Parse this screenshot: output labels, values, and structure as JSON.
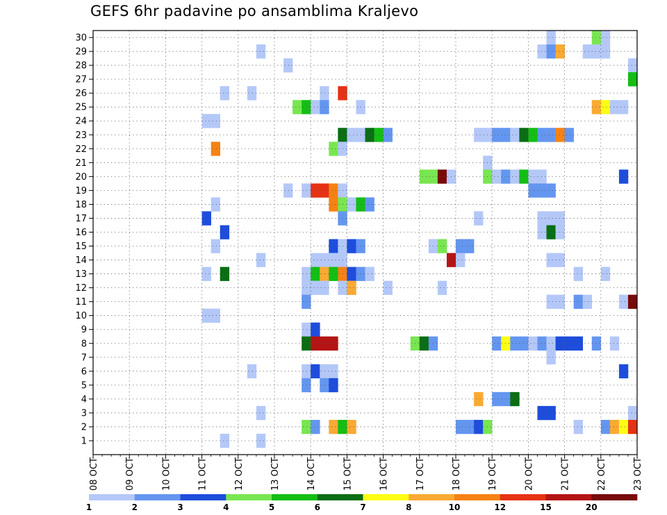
{
  "title": "GEFS 6hr padavine po ansamblima Kraljevo",
  "chart_data": {
    "type": "heatmap",
    "title": "GEFS 6hr padavine po ansamblima Kraljevo",
    "x_ticks": [
      "08 OCT",
      "09 OCT",
      "10 OCT",
      "11 OCT",
      "12 OCT",
      "13 OCT",
      "14 OCT",
      "15 OCT",
      "16 OCT",
      "17 OCT",
      "18 OCT",
      "19 OCT",
      "20 OCT",
      "21 OCT",
      "22 OCT",
      "23 OCT"
    ],
    "y_ticks": [
      "1",
      "2",
      "3",
      "4",
      "5",
      "6",
      "7",
      "8",
      "9",
      "10",
      "11",
      "12",
      "13",
      "14",
      "15",
      "16",
      "17",
      "18",
      "19",
      "20",
      "21",
      "22",
      "23",
      "24",
      "25",
      "26",
      "27",
      "28",
      "29",
      "30"
    ],
    "x_range": [
      "08 OCT 00Z",
      "23 OCT 00Z"
    ],
    "time_step_hours": 6,
    "grid": "dotted",
    "colorbar": {
      "levels": [
        "1",
        "2",
        "3",
        "4",
        "5",
        "6",
        "7",
        "8",
        "10",
        "12",
        "15",
        "20"
      ],
      "colors": [
        "#b4c8f8",
        "#6496f0",
        "#1e4ddc",
        "#78e650",
        "#14be14",
        "#0a6e14",
        "#ffff14",
        "#faaa32",
        "#f58214",
        "#e63214",
        "#b41414",
        "#780a0a"
      ]
    },
    "cells": [
      {
        "member": 30,
        "step": 51,
        "class": 1
      },
      {
        "member": 30,
        "step": 56,
        "class": 4
      },
      {
        "member": 30,
        "step": 57,
        "class": 1
      },
      {
        "member": 29,
        "step": 19,
        "class": 1
      },
      {
        "member": 29,
        "step": 50,
        "class": 1
      },
      {
        "member": 29,
        "step": 51,
        "class": 2
      },
      {
        "member": 29,
        "step": 52,
        "class": 8
      },
      {
        "member": 29,
        "step": 55,
        "class": 1
      },
      {
        "member": 29,
        "step": 56,
        "class": 1
      },
      {
        "member": 29,
        "step": 57,
        "class": 1
      },
      {
        "member": 28,
        "step": 22,
        "class": 1
      },
      {
        "member": 28,
        "step": 60,
        "class": 1
      },
      {
        "member": 27,
        "step": 60,
        "class": 5
      },
      {
        "member": 26,
        "step": 15,
        "class": 1
      },
      {
        "member": 26,
        "step": 18,
        "class": 1
      },
      {
        "member": 26,
        "step": 26,
        "class": 1
      },
      {
        "member": 26,
        "step": 28,
        "class": 10
      },
      {
        "member": 25,
        "step": 23,
        "class": 4
      },
      {
        "member": 25,
        "step": 24,
        "class": 5
      },
      {
        "member": 25,
        "step": 25,
        "class": 1
      },
      {
        "member": 25,
        "step": 26,
        "class": 2
      },
      {
        "member": 25,
        "step": 30,
        "class": 1
      },
      {
        "member": 25,
        "step": 56,
        "class": 8
      },
      {
        "member": 25,
        "step": 57,
        "class": 7
      },
      {
        "member": 25,
        "step": 58,
        "class": 1
      },
      {
        "member": 25,
        "step": 59,
        "class": 1
      },
      {
        "member": 24,
        "step": 13,
        "class": 1
      },
      {
        "member": 24,
        "step": 14,
        "class": 1
      },
      {
        "member": 23,
        "step": 28,
        "class": 6
      },
      {
        "member": 23,
        "step": 29,
        "class": 1
      },
      {
        "member": 23,
        "step": 30,
        "class": 1
      },
      {
        "member": 23,
        "step": 31,
        "class": 6
      },
      {
        "member": 23,
        "step": 32,
        "class": 5
      },
      {
        "member": 23,
        "step": 33,
        "class": 2
      },
      {
        "member": 23,
        "step": 43,
        "class": 1
      },
      {
        "member": 23,
        "step": 44,
        "class": 1
      },
      {
        "member": 23,
        "step": 45,
        "class": 2
      },
      {
        "member": 23,
        "step": 46,
        "class": 2
      },
      {
        "member": 23,
        "step": 47,
        "class": 1
      },
      {
        "member": 23,
        "step": 48,
        "class": 6
      },
      {
        "member": 23,
        "step": 49,
        "class": 5
      },
      {
        "member": 23,
        "step": 50,
        "class": 2
      },
      {
        "member": 23,
        "step": 51,
        "class": 2
      },
      {
        "member": 23,
        "step": 52,
        "class": 9
      },
      {
        "member": 23,
        "step": 53,
        "class": 2
      },
      {
        "member": 22,
        "step": 14,
        "class": 9
      },
      {
        "member": 22,
        "step": 27,
        "class": 4
      },
      {
        "member": 22,
        "step": 28,
        "class": 1
      },
      {
        "member": 21,
        "step": 44,
        "class": 1
      },
      {
        "member": 20,
        "step": 37,
        "class": 4
      },
      {
        "member": 20,
        "step": 38,
        "class": 4
      },
      {
        "member": 20,
        "step": 39,
        "class": 12
      },
      {
        "member": 20,
        "step": 40,
        "class": 1
      },
      {
        "member": 20,
        "step": 44,
        "class": 4
      },
      {
        "member": 20,
        "step": 45,
        "class": 1
      },
      {
        "member": 20,
        "step": 46,
        "class": 2
      },
      {
        "member": 20,
        "step": 47,
        "class": 1
      },
      {
        "member": 20,
        "step": 48,
        "class": 5
      },
      {
        "member": 20,
        "step": 49,
        "class": 1
      },
      {
        "member": 20,
        "step": 50,
        "class": 1
      },
      {
        "member": 20,
        "step": 59,
        "class": 3
      },
      {
        "member": 19,
        "step": 22,
        "class": 1
      },
      {
        "member": 19,
        "step": 24,
        "class": 1
      },
      {
        "member": 19,
        "step": 25,
        "class": 10
      },
      {
        "member": 19,
        "step": 26,
        "class": 10
      },
      {
        "member": 19,
        "step": 27,
        "class": 9
      },
      {
        "member": 19,
        "step": 28,
        "class": 1
      },
      {
        "member": 19,
        "step": 49,
        "class": 2
      },
      {
        "member": 19,
        "step": 50,
        "class": 2
      },
      {
        "member": 19,
        "step": 51,
        "class": 2
      },
      {
        "member": 18,
        "step": 14,
        "class": 1
      },
      {
        "member": 18,
        "step": 27,
        "class": 9
      },
      {
        "member": 18,
        "step": 28,
        "class": 4
      },
      {
        "member": 18,
        "step": 29,
        "class": 1
      },
      {
        "member": 18,
        "step": 30,
        "class": 5
      },
      {
        "member": 18,
        "step": 31,
        "class": 2
      },
      {
        "member": 17,
        "step": 13,
        "class": 3
      },
      {
        "member": 17,
        "step": 28,
        "class": 2
      },
      {
        "member": 17,
        "step": 43,
        "class": 1
      },
      {
        "member": 17,
        "step": 50,
        "class": 1
      },
      {
        "member": 17,
        "step": 51,
        "class": 1
      },
      {
        "member": 17,
        "step": 52,
        "class": 1
      },
      {
        "member": 16,
        "step": 15,
        "class": 3
      },
      {
        "member": 16,
        "step": 50,
        "class": 1
      },
      {
        "member": 16,
        "step": 51,
        "class": 6
      },
      {
        "member": 16,
        "step": 52,
        "class": 1
      },
      {
        "member": 15,
        "step": 14,
        "class": 1
      },
      {
        "member": 15,
        "step": 27,
        "class": 3
      },
      {
        "member": 15,
        "step": 28,
        "class": 1
      },
      {
        "member": 15,
        "step": 29,
        "class": 3
      },
      {
        "member": 15,
        "step": 30,
        "class": 2
      },
      {
        "member": 15,
        "step": 38,
        "class": 1
      },
      {
        "member": 15,
        "step": 39,
        "class": 4
      },
      {
        "member": 15,
        "step": 41,
        "class": 2
      },
      {
        "member": 15,
        "step": 42,
        "class": 2
      },
      {
        "member": 14,
        "step": 19,
        "class": 1
      },
      {
        "member": 14,
        "step": 25,
        "class": 1
      },
      {
        "member": 14,
        "step": 26,
        "class": 1
      },
      {
        "member": 14,
        "step": 27,
        "class": 1
      },
      {
        "member": 14,
        "step": 28,
        "class": 1
      },
      {
        "member": 14,
        "step": 40,
        "class": 11
      },
      {
        "member": 14,
        "step": 41,
        "class": 1
      },
      {
        "member": 14,
        "step": 51,
        "class": 1
      },
      {
        "member": 14,
        "step": 52,
        "class": 1
      },
      {
        "member": 13,
        "step": 13,
        "class": 1
      },
      {
        "member": 13,
        "step": 15,
        "class": 6
      },
      {
        "member": 13,
        "step": 24,
        "class": 1
      },
      {
        "member": 13,
        "step": 25,
        "class": 5
      },
      {
        "member": 13,
        "step": 26,
        "class": 8
      },
      {
        "member": 13,
        "step": 27,
        "class": 5
      },
      {
        "member": 13,
        "step": 28,
        "class": 9
      },
      {
        "member": 13,
        "step": 29,
        "class": 3
      },
      {
        "member": 13,
        "step": 30,
        "class": 2
      },
      {
        "member": 13,
        "step": 31,
        "class": 1
      },
      {
        "member": 13,
        "step": 54,
        "class": 1
      },
      {
        "member": 13,
        "step": 57,
        "class": 1
      },
      {
        "member": 12,
        "step": 24,
        "class": 1
      },
      {
        "member": 12,
        "step": 25,
        "class": 1
      },
      {
        "member": 12,
        "step": 26,
        "class": 1
      },
      {
        "member": 12,
        "step": 28,
        "class": 1
      },
      {
        "member": 12,
        "step": 29,
        "class": 8
      },
      {
        "member": 12,
        "step": 33,
        "class": 1
      },
      {
        "member": 12,
        "step": 39,
        "class": 1
      },
      {
        "member": 11,
        "step": 24,
        "class": 2
      },
      {
        "member": 11,
        "step": 51,
        "class": 1
      },
      {
        "member": 11,
        "step": 52,
        "class": 1
      },
      {
        "member": 11,
        "step": 54,
        "class": 2
      },
      {
        "member": 11,
        "step": 55,
        "class": 1
      },
      {
        "member": 11,
        "step": 59,
        "class": 1
      },
      {
        "member": 11,
        "step": 60,
        "class": 12
      },
      {
        "member": 10,
        "step": 13,
        "class": 1
      },
      {
        "member": 10,
        "step": 14,
        "class": 1
      },
      {
        "member": 9,
        "step": 24,
        "class": 1
      },
      {
        "member": 9,
        "step": 25,
        "class": 3
      },
      {
        "member": 8,
        "step": 24,
        "class": 6
      },
      {
        "member": 8,
        "step": 25,
        "class": 11
      },
      {
        "member": 8,
        "step": 26,
        "class": 11
      },
      {
        "member": 8,
        "step": 27,
        "class": 11
      },
      {
        "member": 8,
        "step": 36,
        "class": 4
      },
      {
        "member": 8,
        "step": 37,
        "class": 6
      },
      {
        "member": 8,
        "step": 38,
        "class": 2
      },
      {
        "member": 8,
        "step": 45,
        "class": 2
      },
      {
        "member": 8,
        "step": 46,
        "class": 7
      },
      {
        "member": 8,
        "step": 47,
        "class": 2
      },
      {
        "member": 8,
        "step": 48,
        "class": 2
      },
      {
        "member": 8,
        "step": 49,
        "class": 1
      },
      {
        "member": 8,
        "step": 50,
        "class": 2
      },
      {
        "member": 8,
        "step": 51,
        "class": 1
      },
      {
        "member": 8,
        "step": 52,
        "class": 3
      },
      {
        "member": 8,
        "step": 53,
        "class": 3
      },
      {
        "member": 8,
        "step": 54,
        "class": 3
      },
      {
        "member": 8,
        "step": 56,
        "class": 2
      },
      {
        "member": 8,
        "step": 58,
        "class": 1
      },
      {
        "member": 7,
        "step": 51,
        "class": 1
      },
      {
        "member": 6,
        "step": 18,
        "class": 1
      },
      {
        "member": 6,
        "step": 24,
        "class": 1
      },
      {
        "member": 6,
        "step": 25,
        "class": 3
      },
      {
        "member": 6,
        "step": 26,
        "class": 1
      },
      {
        "member": 6,
        "step": 27,
        "class": 1
      },
      {
        "member": 6,
        "step": 59,
        "class": 3
      },
      {
        "member": 5,
        "step": 24,
        "class": 2
      },
      {
        "member": 5,
        "step": 26,
        "class": 2
      },
      {
        "member": 5,
        "step": 27,
        "class": 3
      },
      {
        "member": 4,
        "step": 43,
        "class": 8
      },
      {
        "member": 4,
        "step": 45,
        "class": 2
      },
      {
        "member": 4,
        "step": 46,
        "class": 2
      },
      {
        "member": 4,
        "step": 47,
        "class": 6
      },
      {
        "member": 3,
        "step": 19,
        "class": 1
      },
      {
        "member": 3,
        "step": 50,
        "class": 3
      },
      {
        "member": 3,
        "step": 51,
        "class": 3
      },
      {
        "member": 3,
        "step": 60,
        "class": 1
      },
      {
        "member": 2,
        "step": 24,
        "class": 4
      },
      {
        "member": 2,
        "step": 25,
        "class": 2
      },
      {
        "member": 2,
        "step": 27,
        "class": 8
      },
      {
        "member": 2,
        "step": 28,
        "class": 5
      },
      {
        "member": 2,
        "step": 29,
        "class": 8
      },
      {
        "member": 2,
        "step": 41,
        "class": 2
      },
      {
        "member": 2,
        "step": 42,
        "class": 2
      },
      {
        "member": 2,
        "step": 43,
        "class": 3
      },
      {
        "member": 2,
        "step": 44,
        "class": 4
      },
      {
        "member": 2,
        "step": 54,
        "class": 1
      },
      {
        "member": 2,
        "step": 57,
        "class": 2
      },
      {
        "member": 2,
        "step": 58,
        "class": 8
      },
      {
        "member": 2,
        "step": 59,
        "class": 7
      },
      {
        "member": 2,
        "step": 60,
        "class": 10
      },
      {
        "member": 1,
        "step": 15,
        "class": 1
      },
      {
        "member": 1,
        "step": 19,
        "class": 1
      }
    ]
  }
}
